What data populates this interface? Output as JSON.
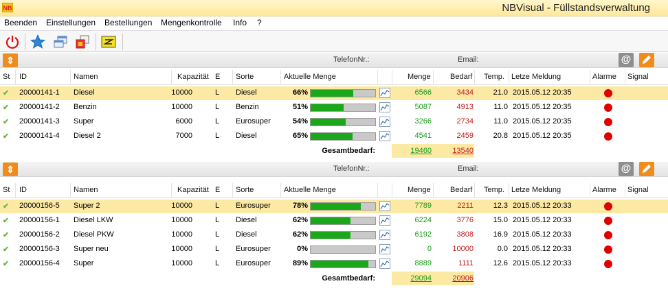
{
  "app": {
    "logo": "NB",
    "title": "NBVisual - Füllstandsverwaltung"
  },
  "menu": [
    "Beenden",
    "Einstellungen",
    "Bestellungen",
    "Mengenkontrolle",
    "Info",
    "?"
  ],
  "toolbar": [
    "power-icon",
    "star-icon",
    "windows-icon",
    "window-switch-icon",
    "settings-icon"
  ],
  "header": {
    "telefon": "TelefonNr.:",
    "email": "Email:",
    "columns": [
      "St",
      "ID",
      "Namen",
      "Kapazität",
      "E",
      "Sorte",
      "Aktuelle Menge",
      "Menge",
      "Bedarf",
      "Temp.",
      "Letze Meldung",
      "Alarme",
      "Signal"
    ]
  },
  "groups": [
    {
      "rows": [
        {
          "id": "20000141-1",
          "name": "Diesel",
          "kap": "10000",
          "e": "L",
          "sorte": "Diesel",
          "pct": "66%",
          "fill": 0.66,
          "menge": "6566",
          "bedarf": "3434",
          "temp": "21.0",
          "meldung": "2015.05.12 20:35"
        },
        {
          "id": "20000141-2",
          "name": "Benzin",
          "kap": "10000",
          "e": "L",
          "sorte": "Benzin",
          "pct": "51%",
          "fill": 0.51,
          "menge": "5087",
          "bedarf": "4913",
          "temp": "11.0",
          "meldung": "2015.05.12 20:35"
        },
        {
          "id": "20000141-3",
          "name": "Super",
          "kap": "6000",
          "e": "L",
          "sorte": "Eurosuper",
          "pct": "54%",
          "fill": 0.54,
          "menge": "3266",
          "bedarf": "2734",
          "temp": "11.0",
          "meldung": "2015.05.12 20:35"
        },
        {
          "id": "20000141-4",
          "name": "Diesel 2",
          "kap": "7000",
          "e": "L",
          "sorte": "Diesel",
          "pct": "65%",
          "fill": 0.65,
          "menge": "4541",
          "bedarf": "2459",
          "temp": "20.8",
          "meldung": "2015.05.12 20:35"
        }
      ],
      "total_label": "Gesamtbedarf:",
      "total_menge": "19460",
      "total_bedarf": "13540"
    },
    {
      "rows": [
        {
          "id": "20000156-5",
          "name": "Super 2",
          "kap": "10000",
          "e": "L",
          "sorte": "Eurosuper",
          "pct": "78%",
          "fill": 0.78,
          "menge": "7789",
          "bedarf": "2211",
          "temp": "12.3",
          "meldung": "2015.05.12 20:33"
        },
        {
          "id": "20000156-1",
          "name": "Diesel LKW",
          "kap": "10000",
          "e": "L",
          "sorte": "Diesel",
          "pct": "62%",
          "fill": 0.62,
          "menge": "6224",
          "bedarf": "3776",
          "temp": "15.0",
          "meldung": "2015.05.12 20:33"
        },
        {
          "id": "20000156-2",
          "name": "Diesel PKW",
          "kap": "10000",
          "e": "L",
          "sorte": "Diesel",
          "pct": "62%",
          "fill": 0.62,
          "menge": "6192",
          "bedarf": "3808",
          "temp": "16.9",
          "meldung": "2015.05.12 20:33"
        },
        {
          "id": "20000156-3",
          "name": "Super neu",
          "kap": "10000",
          "e": "L",
          "sorte": "Eurosuper",
          "pct": "0%",
          "fill": 0.0,
          "menge": "0",
          "bedarf": "10000",
          "temp": "0.0",
          "meldung": "2015.05.12 20:33"
        },
        {
          "id": "20000156-4",
          "name": "Super",
          "kap": "10000",
          "e": "L",
          "sorte": "Eurosuper",
          "pct": "89%",
          "fill": 0.89,
          "menge": "8889",
          "bedarf": "1111",
          "temp": "12.6",
          "meldung": "2015.05.12 20:33"
        }
      ],
      "total_label": "Gesamtbedarf:",
      "total_menge": "29094",
      "total_bedarf": "20906"
    }
  ]
}
